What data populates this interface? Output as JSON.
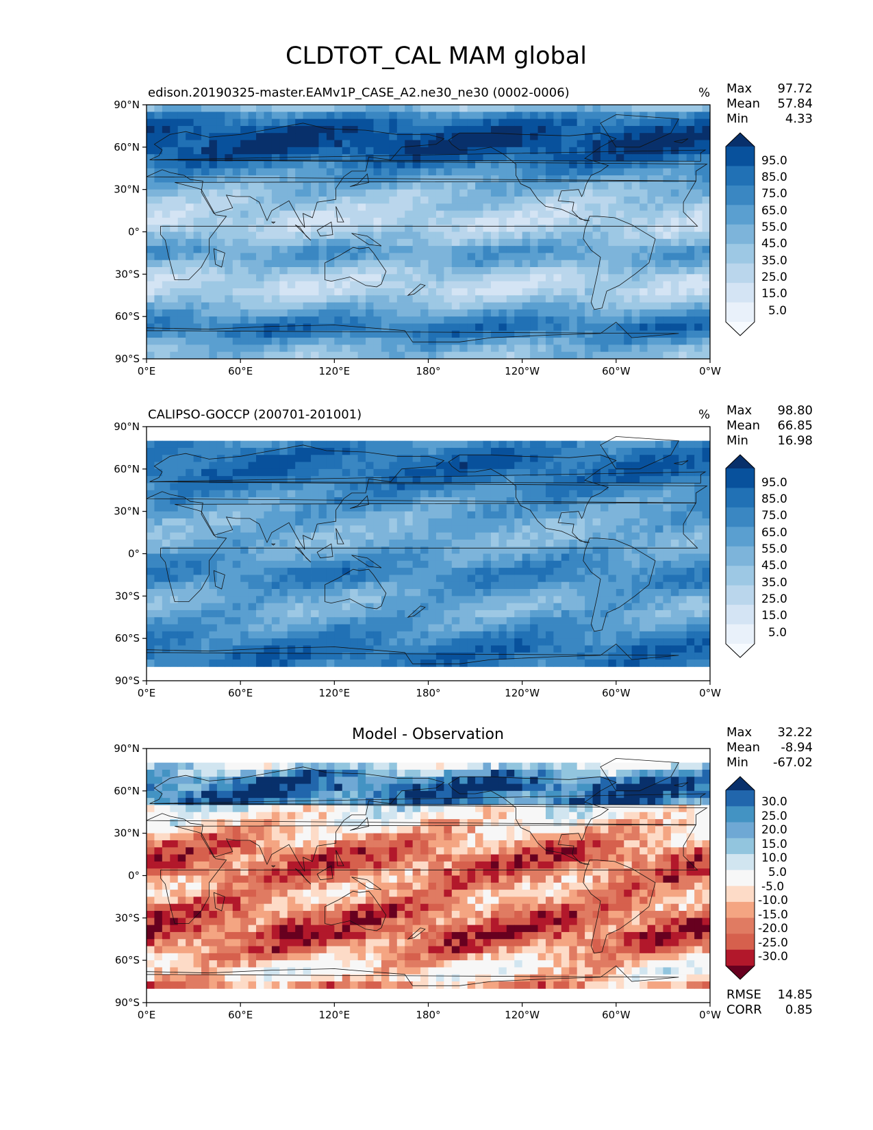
{
  "figure": {
    "title": "CLDTOT_CAL MAM global"
  },
  "chart_data": [
    {
      "type": "heatmap",
      "title": "edison.20190325-master.EAMv1P_CASE_A2.ne30_ne30 (0002-0006)",
      "units": "%",
      "xlim": [
        0,
        360
      ],
      "ylim": [
        -90,
        90
      ],
      "x_ticks": [
        "0°E",
        "60°E",
        "120°E",
        "180°",
        "120°W",
        "60°W",
        "0°W"
      ],
      "y_ticks": [
        "90°N",
        "60°N",
        "30°N",
        "0°",
        "30°S",
        "60°S",
        "90°S"
      ],
      "stats": [
        {
          "label": "Max",
          "value": "97.72"
        },
        {
          "label": "Mean",
          "value": "57.84"
        },
        {
          "label": "Min",
          "value": "4.33"
        }
      ],
      "colorbar": {
        "labels": [
          "95.0",
          "85.0",
          "75.0",
          "65.0",
          "55.0",
          "45.0",
          "35.0",
          "25.0",
          "15.0",
          "5.0"
        ],
        "colors": [
          "#08306b",
          "#08519c",
          "#2171b5",
          "#3a87c2",
          "#5a9fd0",
          "#7db4da",
          "#9dc8e4",
          "#bad6ec",
          "#d4e4f4",
          "#e9f1fa",
          "#f7fbff"
        ]
      },
      "field": "model"
    },
    {
      "type": "heatmap",
      "title": "CALIPSO-GOCCP (200701-201001)",
      "units": "%",
      "xlim": [
        0,
        360
      ],
      "ylim": [
        -90,
        90
      ],
      "x_ticks": [
        "0°E",
        "60°E",
        "120°E",
        "180°",
        "120°W",
        "60°W",
        "0°W"
      ],
      "y_ticks": [
        "90°N",
        "60°N",
        "30°N",
        "0°",
        "30°S",
        "60°S",
        "90°S"
      ],
      "stats": [
        {
          "label": "Max",
          "value": "98.80"
        },
        {
          "label": "Mean",
          "value": "66.85"
        },
        {
          "label": "Min",
          "value": "16.98"
        }
      ],
      "colorbar": {
        "labels": [
          "95.0",
          "85.0",
          "75.0",
          "65.0",
          "55.0",
          "45.0",
          "35.0",
          "25.0",
          "15.0",
          "5.0"
        ],
        "colors": [
          "#08306b",
          "#08519c",
          "#2171b5",
          "#3a87c2",
          "#5a9fd0",
          "#7db4da",
          "#9dc8e4",
          "#bad6ec",
          "#d4e4f4",
          "#e9f1fa",
          "#f7fbff"
        ]
      },
      "field": "obs"
    },
    {
      "type": "heatmap",
      "title": "Model - Observation",
      "units": "",
      "xlim": [
        0,
        360
      ],
      "ylim": [
        -90,
        90
      ],
      "x_ticks": [
        "0°E",
        "60°E",
        "120°E",
        "180°",
        "120°W",
        "60°W",
        "0°W"
      ],
      "y_ticks": [
        "90°N",
        "60°N",
        "30°N",
        "0°",
        "30°S",
        "60°S",
        "90°S"
      ],
      "stats": [
        {
          "label": "Max",
          "value": "32.22"
        },
        {
          "label": "Mean",
          "value": "-8.94"
        },
        {
          "label": "Min",
          "value": "-67.02"
        }
      ],
      "colorbar": {
        "labels": [
          "30.0",
          "25.0",
          "20.0",
          "15.0",
          "10.0",
          "5.0",
          "-5.0",
          "-10.0",
          "-15.0",
          "-20.0",
          "-25.0",
          "-30.0"
        ],
        "colors": [
          "#08306b",
          "#2166ac",
          "#4393c3",
          "#6fa8d4",
          "#92c5de",
          "#d1e5f0",
          "#f7f7f7",
          "#fddbc7",
          "#f4a582",
          "#e07b62",
          "#d6604d",
          "#b2182b",
          "#67001f"
        ]
      },
      "extra_stats": [
        {
          "label": "RMSE",
          "value": "14.85"
        },
        {
          "label": "CORR",
          "value": "0.85"
        }
      ],
      "field": "diff"
    }
  ]
}
